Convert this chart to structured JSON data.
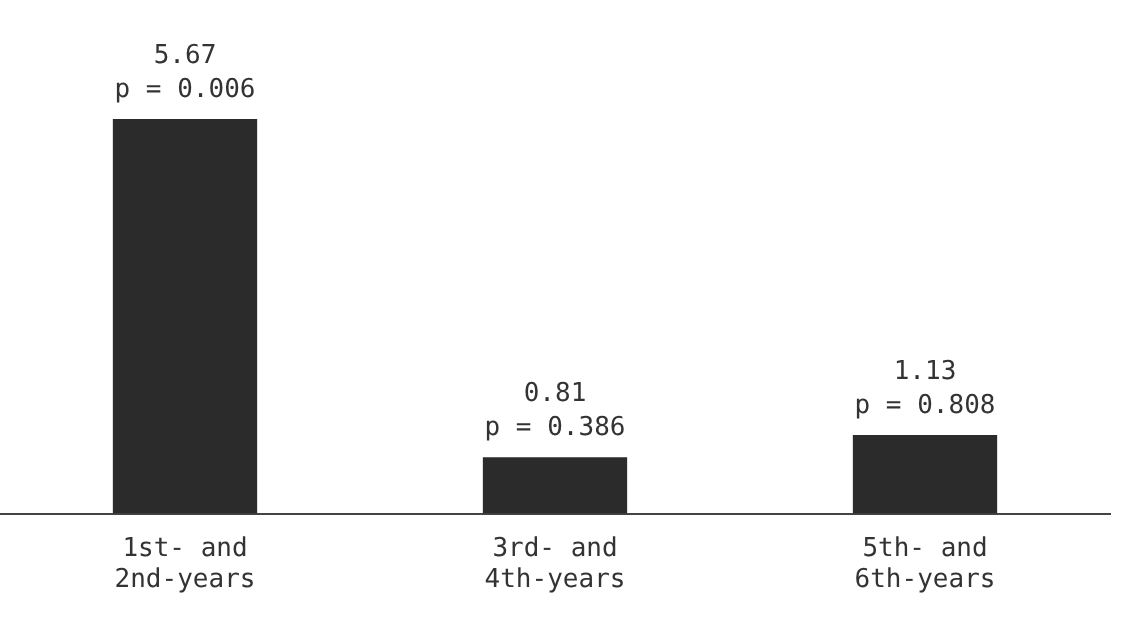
{
  "chart_data": {
    "type": "bar",
    "categories": [
      "1st- and\n2nd-years",
      "3rd- and\n4th-years",
      "5th- and\n6th-years"
    ],
    "values": [
      5.67,
      0.81,
      1.13
    ],
    "color": "#2b2b2b",
    "value_labels": [
      "5.67",
      "0.81",
      "1.13"
    ],
    "annotations": [
      {
        "text": "p = 0.006",
        "x": "1st- and\n2nd-years",
        "y": 5.67
      },
      {
        "text": "p = 0.386",
        "x": "3rd- and\n4th-years",
        "y": 0.81
      },
      {
        "text": "p = 0.808",
        "x": "5th- and\n6th-years",
        "y": 1.13
      }
    ],
    "tick_labels": "x",
    "grid": false,
    "legend": false
  }
}
